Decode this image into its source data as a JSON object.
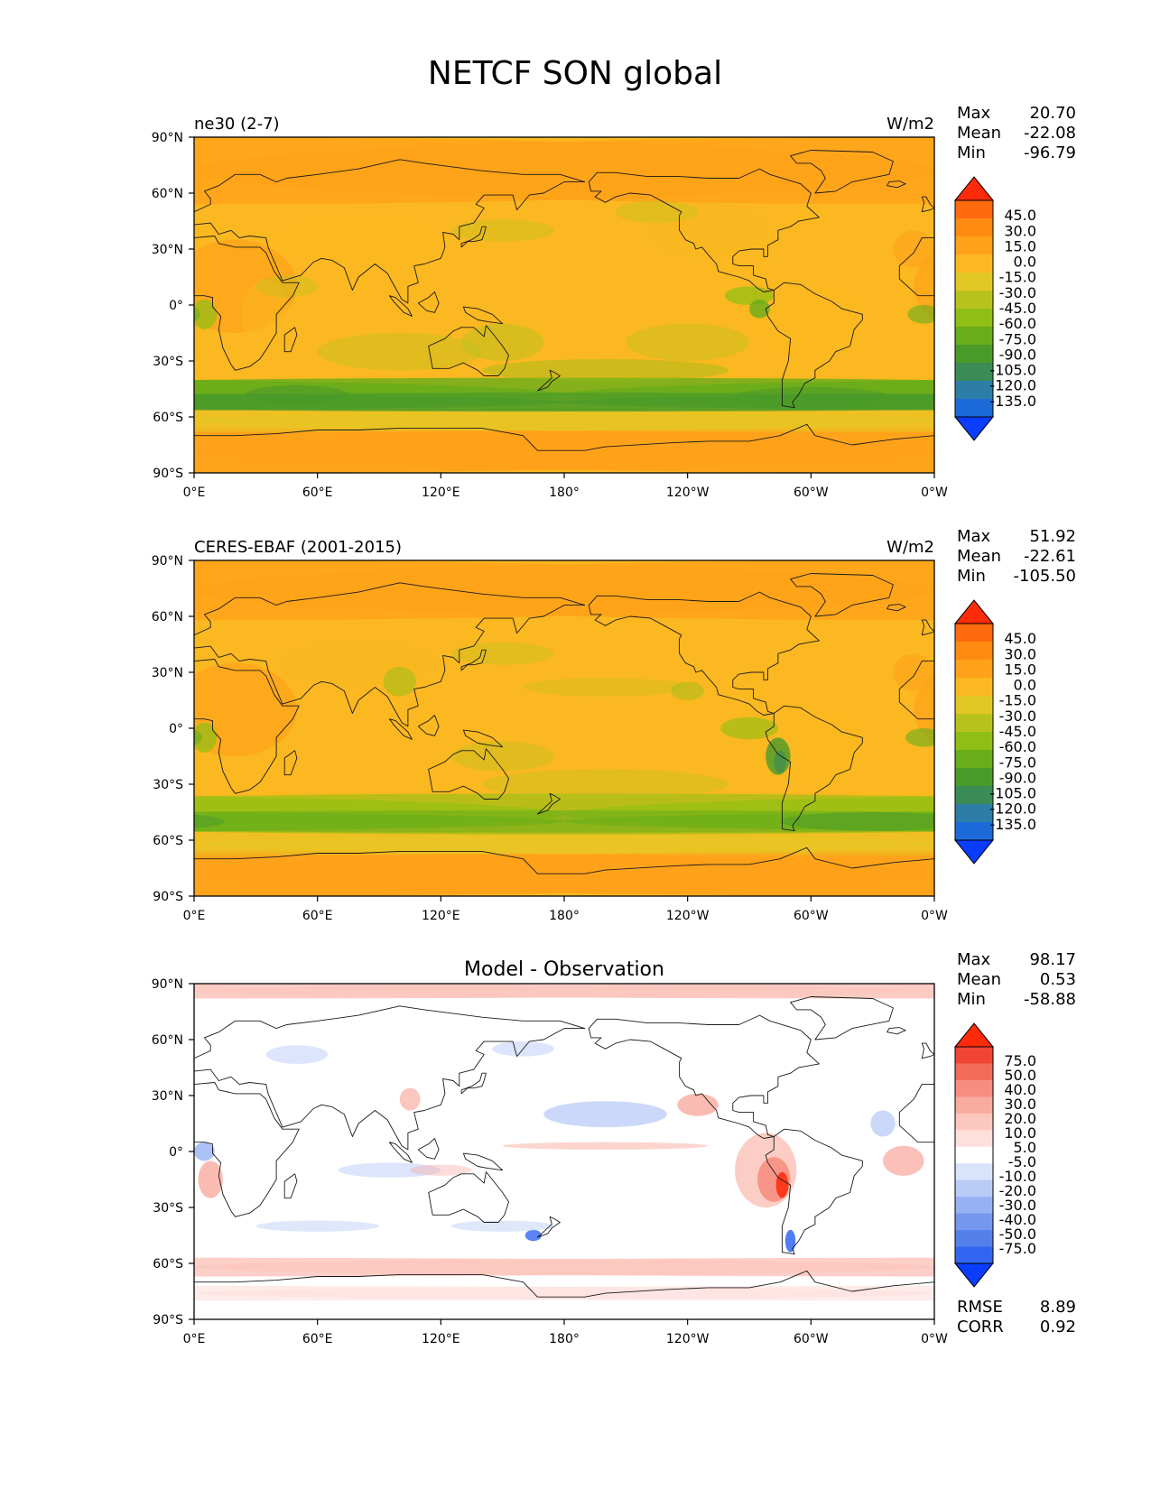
{
  "figure": {
    "title": "NETCF SON global"
  },
  "axes": {
    "lat_ticks": [
      "90°N",
      "60°N",
      "30°N",
      "0°",
      "30°S",
      "60°S",
      "90°S"
    ],
    "lon_ticks": [
      "0°E",
      "60°E",
      "120°E",
      "180°",
      "120°W",
      "60°W",
      "0°W"
    ]
  },
  "colors": {
    "main_levels": [
      "#0a3dff",
      "#1c6ad9",
      "#2d7ea6",
      "#3b8b55",
      "#4a9a2a",
      "#68ad1a",
      "#8fbf14",
      "#b8c21c",
      "#e3c724",
      "#fbb820",
      "#ffa21a",
      "#ff8a12",
      "#ff6a0e",
      "#ff2a0a"
    ],
    "diff_levels": [
      "#0a3dff",
      "#3366f0",
      "#5580ea",
      "#7598ee",
      "#97b2f3",
      "#b9cbf7",
      "#d9e3fb",
      "#ffffff",
      "#fde0dc",
      "#fbc7be",
      "#f9ab9f",
      "#f78d7e",
      "#f46a5a",
      "#f04535",
      "#ff2a0a"
    ],
    "coast": "#1a1a1a"
  },
  "panels": [
    {
      "title_left": "ne30 (2-7)",
      "title_center": "",
      "units": "W/m2",
      "stats": [
        {
          "label": "Max",
          "value": "20.70"
        },
        {
          "label": "Mean",
          "value": "-22.08"
        },
        {
          "label": "Min",
          "value": "-96.79"
        }
      ],
      "colorbar_labels": [
        "45.0",
        "30.0",
        "15.0",
        "0.0",
        "-15.0",
        "-30.0",
        "-45.0",
        "-60.0",
        "-75.0",
        "-90.0",
        "-105.0",
        "-120.0",
        "-135.0"
      ],
      "footer_stats": []
    },
    {
      "title_left": "CERES-EBAF (2001-2015)",
      "title_center": "",
      "units": "W/m2",
      "stats": [
        {
          "label": "Max",
          "value": "51.92"
        },
        {
          "label": "Mean",
          "value": "-22.61"
        },
        {
          "label": "Min",
          "value": "-105.50"
        }
      ],
      "colorbar_labels": [
        "45.0",
        "30.0",
        "15.0",
        "0.0",
        "-15.0",
        "-30.0",
        "-45.0",
        "-60.0",
        "-75.0",
        "-90.0",
        "-105.0",
        "-120.0",
        "-135.0"
      ],
      "footer_stats": []
    },
    {
      "title_left": "",
      "title_center": "Model - Observation",
      "units": "",
      "stats": [
        {
          "label": "Max",
          "value": "98.17"
        },
        {
          "label": "Mean",
          "value": "0.53"
        },
        {
          "label": "Min",
          "value": "-58.88"
        }
      ],
      "colorbar_labels": [
        "75.0",
        "50.0",
        "40.0",
        "30.0",
        "20.0",
        "10.0",
        "5.0",
        "-5.0",
        "-10.0",
        "-20.0",
        "-30.0",
        "-40.0",
        "-50.0",
        "-75.0"
      ],
      "footer_stats": [
        {
          "label": "RMSE",
          "value": "8.89"
        },
        {
          "label": "CORR",
          "value": "0.92"
        }
      ]
    }
  ]
}
